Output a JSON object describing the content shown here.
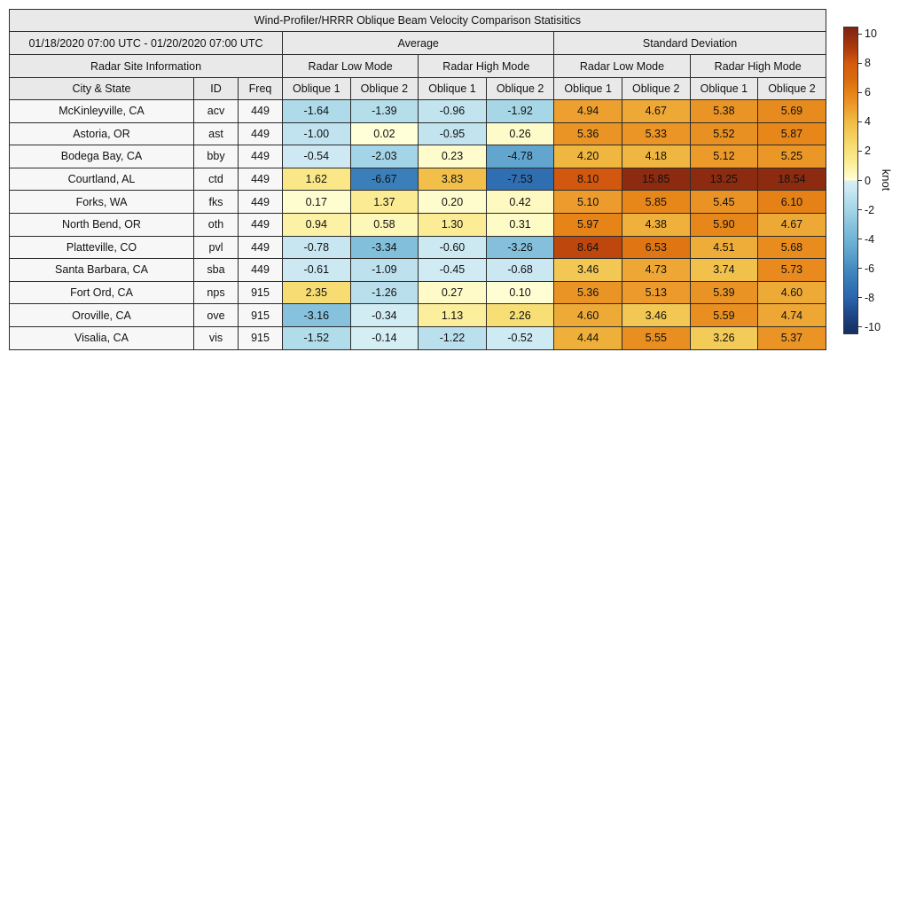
{
  "labels": {
    "average": "Average",
    "std_dev": "Standard Deviation",
    "site_info": "Radar Site Information",
    "city_state": "City & State",
    "id": "ID",
    "freq": "Freq",
    "modes": [
      "Radar Low Mode",
      "Radar High Mode"
    ],
    "obliques": [
      "Oblique 1",
      "Oblique 2"
    ]
  },
  "colorbar": {
    "label": "knot",
    "ticks": [
      10,
      8,
      6,
      4,
      2,
      0,
      -2,
      -4,
      -6,
      -8,
      -10
    ],
    "range_min": -10.5,
    "range_max": 10.5,
    "stops": [
      [
        -10.5,
        "#142f63"
      ],
      [
        -10,
        "#17356e"
      ],
      [
        -9,
        "#1f4c8d"
      ],
      [
        -8,
        "#2b66ae"
      ],
      [
        -7,
        "#3578b7"
      ],
      [
        -6,
        "#468cc1"
      ],
      [
        -5,
        "#5da2cd"
      ],
      [
        -4,
        "#72b4d6"
      ],
      [
        -3,
        "#8ac4de"
      ],
      [
        -2,
        "#a5d5e7"
      ],
      [
        -1.5,
        "#b2dcea"
      ],
      [
        -1,
        "#c0e3ef"
      ],
      [
        -0.5,
        "#cfeaf3"
      ],
      [
        -0.001,
        "#d8eff5"
      ],
      [
        0,
        "#ffffd9"
      ],
      [
        0.5,
        "#fdf8bc"
      ],
      [
        1,
        "#fcf0a2"
      ],
      [
        1.5,
        "#fae98c"
      ],
      [
        2.5,
        "#f6da6e"
      ],
      [
        4,
        "#f0bc45"
      ],
      [
        5,
        "#ed9e2e"
      ],
      [
        6,
        "#e68317"
      ],
      [
        7,
        "#d96a0f"
      ],
      [
        8,
        "#d55b0e"
      ],
      [
        9,
        "#b03c0c"
      ],
      [
        10,
        "#8c2b10"
      ],
      [
        10.5,
        "#7e2410"
      ]
    ]
  },
  "chart_data": {
    "type": "heatmap",
    "title": "Wind-Profiler/HRRR Oblique Beam Velocity Comparison Statisitics",
    "date_range": "01/18/2020 07:00 UTC - 01/20/2020 07:00 UTC",
    "unit": "knot",
    "value_columns": [
      "Average Radar Low Mode Oblique 1",
      "Average Radar Low Mode Oblique 2",
      "Average Radar High Mode Oblique 1",
      "Average Radar High Mode Oblique 2",
      "Std Dev Radar Low Mode Oblique 1",
      "Std Dev Radar Low Mode Oblique 2",
      "Std Dev Radar High Mode Oblique 1",
      "Std Dev Radar High Mode Oblique 2"
    ],
    "color_range": [
      -10,
      10
    ],
    "rows": [
      {
        "city": "McKinleyville, CA",
        "id": "acv",
        "freq": "449",
        "values": [
          -1.64,
          -1.39,
          -0.96,
          -1.92,
          4.94,
          4.67,
          5.38,
          5.69
        ]
      },
      {
        "city": "Astoria, OR",
        "id": "ast",
        "freq": "449",
        "values": [
          -1.0,
          0.02,
          -0.95,
          0.26,
          5.36,
          5.33,
          5.52,
          5.87
        ]
      },
      {
        "city": "Bodega Bay, CA",
        "id": "bby",
        "freq": "449",
        "values": [
          -0.54,
          -2.03,
          0.23,
          -4.78,
          4.2,
          4.18,
          5.12,
          5.25
        ]
      },
      {
        "city": "Courtland, AL",
        "id": "ctd",
        "freq": "449",
        "values": [
          1.62,
          -6.67,
          3.83,
          -7.53,
          8.1,
          15.85,
          13.25,
          18.54
        ]
      },
      {
        "city": "Forks, WA",
        "id": "fks",
        "freq": "449",
        "values": [
          0.17,
          1.37,
          0.2,
          0.42,
          5.1,
          5.85,
          5.45,
          6.1
        ]
      },
      {
        "city": "North Bend, OR",
        "id": "oth",
        "freq": "449",
        "values": [
          0.94,
          0.58,
          1.3,
          0.31,
          5.97,
          4.38,
          5.9,
          4.67
        ]
      },
      {
        "city": "Platteville, CO",
        "id": "pvl",
        "freq": "449",
        "values": [
          -0.78,
          -3.34,
          -0.6,
          -3.26,
          8.64,
          6.53,
          4.51,
          5.68
        ]
      },
      {
        "city": "Santa Barbara, CA",
        "id": "sba",
        "freq": "449",
        "values": [
          -0.61,
          -1.09,
          -0.45,
          -0.68,
          3.46,
          4.73,
          3.74,
          5.73
        ]
      },
      {
        "city": "Fort Ord, CA",
        "id": "nps",
        "freq": "915",
        "values": [
          2.35,
          -1.26,
          0.27,
          0.1,
          5.36,
          5.13,
          5.39,
          4.6
        ]
      },
      {
        "city": "Oroville, CA",
        "id": "ove",
        "freq": "915",
        "values": [
          -3.16,
          -0.34,
          1.13,
          2.26,
          4.6,
          3.46,
          5.59,
          4.74
        ]
      },
      {
        "city": "Visalia, CA",
        "id": "vis",
        "freq": "915",
        "values": [
          -1.52,
          -0.14,
          -1.22,
          -0.52,
          4.44,
          5.55,
          3.26,
          5.37
        ]
      }
    ]
  }
}
